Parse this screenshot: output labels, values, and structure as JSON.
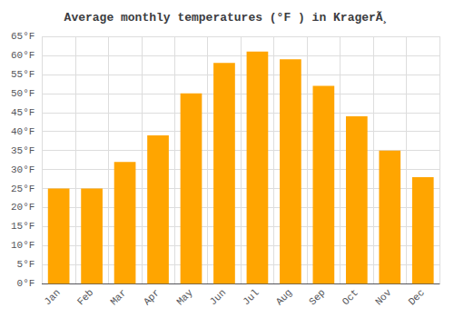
{
  "chart_data": {
    "type": "bar",
    "title": "Average monthly temperatures (°F ) in KragerÃ¸",
    "categories": [
      "Jan",
      "Feb",
      "Mar",
      "Apr",
      "May",
      "Jun",
      "Jul",
      "Aug",
      "Sep",
      "Oct",
      "Nov",
      "Dec"
    ],
    "values": [
      25,
      25,
      32,
      39,
      50,
      58,
      61,
      59,
      52,
      44,
      35,
      28
    ],
    "color": "#FFA500",
    "ylim": [
      0,
      65
    ],
    "yticks": [
      {
        "value": 0,
        "label": "0°F"
      },
      {
        "value": 5,
        "label": "5°F"
      },
      {
        "value": 10,
        "label": "10°F"
      },
      {
        "value": 15,
        "label": "15°F"
      },
      {
        "value": 20,
        "label": "20°F"
      },
      {
        "value": 25,
        "label": "25°F"
      },
      {
        "value": 30,
        "label": "30°F"
      },
      {
        "value": 35,
        "label": "35°F"
      },
      {
        "value": 40,
        "label": "40°F"
      },
      {
        "value": 45,
        "label": "45°F"
      },
      {
        "value": 50,
        "label": "50°F"
      },
      {
        "value": 55,
        "label": "55°F"
      },
      {
        "value": 60,
        "label": "60°F"
      },
      {
        "value": 65,
        "label": "65°F"
      }
    ],
    "grid": true
  }
}
